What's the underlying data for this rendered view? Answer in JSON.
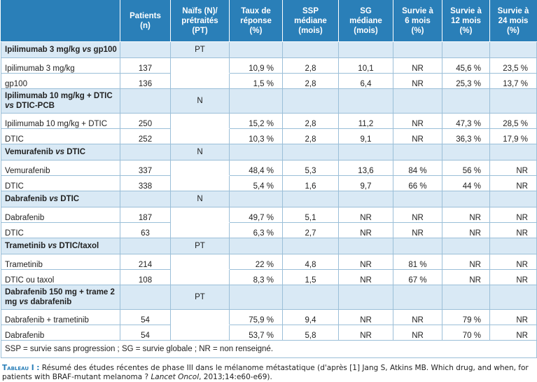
{
  "headers": [
    "",
    "Patients\n(n)",
    "Naïfs (N)/\nprétraités\n(PT)",
    "Taux de\nréponse\n(%)",
    "SSP\nmédiane\n(mois)",
    "SG\nmédiane\n(mois)",
    "Survie à\n6 mois\n(%)",
    "Survie à\n12 mois\n(%)",
    "Survie à\n24 mois\n(%)"
  ],
  "groups": [
    {
      "title": "Ipilimumab 3 mg/kg vs gp100",
      "status": "PT",
      "rows": [
        [
          "Ipilimumab 3 mg/kg",
          "137",
          "10,9 %",
          "2,8",
          "10,1",
          "NR",
          "45,6 %",
          "23,5 %"
        ],
        [
          "gp100",
          "136",
          "1,5 %",
          "2,8",
          "6,4",
          "NR",
          "25,3 %",
          "13,7 %"
        ]
      ]
    },
    {
      "title": "Ipilimumab 10 mg/kg + DTIC vs DTIC-PCB",
      "status": "N",
      "rows": [
        [
          "Ipilimumab 10 mg/kg + DTIC",
          "250",
          "15,2 %",
          "2,8",
          "11,2",
          "NR",
          "47,3 %",
          "28,5 %"
        ],
        [
          "DTIC",
          "252",
          "10,3 %",
          "2,8",
          "9,1",
          "NR",
          "36,3 %",
          "17,9 %"
        ]
      ]
    },
    {
      "title": "Vemurafenib vs DTIC",
      "status": "N",
      "rows": [
        [
          "Vemurafenib",
          "337",
          "48,4 %",
          "5,3",
          "13,6",
          "84 %",
          "56 %",
          "NR"
        ],
        [
          "DTIC",
          "338",
          "5,4 %",
          "1,6",
          "9,7",
          "66 %",
          "44 %",
          "NR"
        ]
      ]
    },
    {
      "title": "Dabrafenib vs DTIC",
      "status": "N",
      "rows": [
        [
          "Dabrafenib",
          "187",
          "49,7 %",
          "5,1",
          "NR",
          "NR",
          "NR",
          "NR"
        ],
        [
          "DTIC",
          "63",
          "6,3 %",
          "2,7",
          "NR",
          "NR",
          "NR",
          "NR"
        ]
      ]
    },
    {
      "title": "Trametinib vs DTIC/taxol",
      "status": "PT",
      "rows": [
        [
          "Trametinib",
          "214",
          "22 %",
          "4,8",
          "NR",
          "81 %",
          "NR",
          "NR"
        ],
        [
          "DTIC ou taxol",
          "108",
          "8,3 %",
          "1,5",
          "NR",
          "67 %",
          "NR",
          "NR"
        ]
      ]
    },
    {
      "title": "Dabrafenib 150 mg + trame 2 mg vs dabrafenib",
      "status": "PT",
      "rows": [
        [
          "Dabrafenib + trametinib",
          "54",
          "75,9 %",
          "9,4",
          "NR",
          "NR",
          "79 %",
          "NR"
        ],
        [
          "Dabrafenib",
          "54",
          "53,7 %",
          "5,8",
          "NR",
          "NR",
          "70 %",
          "NR"
        ]
      ]
    }
  ],
  "footnote": "SSP = survie sans progression ; SG = survie globale ; NR = non renseigné.",
  "caption": {
    "label": "Tableau I :",
    "text1": " Résumé des études récentes de phase III dans le mélanome métastatique (d'après [1] Jang S, Atkins MB. Which drug, and when, for patients with BRAF-mutant melanoma ? ",
    "journal": "Lancet Oncol",
    "text2": ", 2013;14:e60-e69)."
  }
}
